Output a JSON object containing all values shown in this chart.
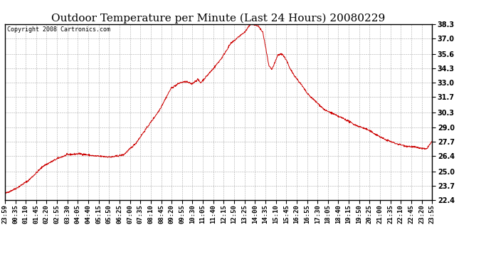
{
  "title": "Outdoor Temperature per Minute (Last 24 Hours) 20080229",
  "copyright_text": "Copyright 2008 Cartronics.com",
  "line_color": "#cc0000",
  "background_color": "#ffffff",
  "grid_color": "#aaaaaa",
  "border_color": "#000000",
  "ylim": [
    22.4,
    38.3
  ],
  "yticks": [
    22.4,
    23.7,
    25.0,
    26.4,
    27.7,
    29.0,
    30.3,
    31.7,
    33.0,
    34.3,
    35.6,
    37.0,
    38.3
  ],
  "x_labels": [
    "23:59",
    "00:35",
    "01:10",
    "01:45",
    "02:20",
    "02:55",
    "03:30",
    "04:05",
    "04:40",
    "05:15",
    "05:50",
    "06:25",
    "07:00",
    "07:35",
    "08:10",
    "08:45",
    "09:20",
    "09:55",
    "10:30",
    "11:05",
    "11:40",
    "12:15",
    "12:50",
    "13:25",
    "14:00",
    "14:35",
    "15:10",
    "15:45",
    "16:20",
    "16:55",
    "17:30",
    "18:05",
    "18:40",
    "19:15",
    "19:50",
    "20:25",
    "21:00",
    "21:35",
    "22:10",
    "22:45",
    "23:20",
    "23:55"
  ],
  "title_fontsize": 11,
  "tick_fontsize": 6.5,
  "ytick_fontsize": 7,
  "copyright_fontsize": 6,
  "key_points_x": [
    0,
    40,
    80,
    130,
    180,
    210,
    250,
    265,
    300,
    360,
    400,
    440,
    480,
    520,
    560,
    590,
    610,
    620,
    630,
    650,
    660,
    700,
    730,
    760,
    790,
    810,
    820,
    830,
    845,
    855,
    870,
    890,
    900,
    910,
    920,
    935,
    950,
    960,
    980,
    1000,
    1020,
    1040,
    1060,
    1080,
    1100,
    1120,
    1140,
    1160,
    1180,
    1200,
    1220,
    1240,
    1260,
    1280,
    1300,
    1320,
    1350,
    1380,
    1420,
    1440
  ],
  "key_points_y": [
    23.0,
    23.5,
    24.2,
    25.5,
    26.2,
    26.5,
    26.6,
    26.55,
    26.4,
    26.3,
    26.5,
    27.5,
    29.0,
    30.5,
    32.5,
    33.0,
    33.1,
    33.0,
    32.9,
    33.3,
    33.0,
    34.2,
    35.2,
    36.5,
    37.2,
    37.6,
    38.0,
    38.3,
    38.2,
    38.1,
    37.5,
    34.5,
    34.2,
    34.8,
    35.5,
    35.6,
    35.0,
    34.3,
    33.5,
    32.8,
    32.0,
    31.5,
    31.0,
    30.5,
    30.3,
    30.0,
    29.8,
    29.5,
    29.2,
    29.0,
    28.8,
    28.5,
    28.2,
    27.9,
    27.7,
    27.5,
    27.3,
    27.2,
    27.0,
    27.7
  ]
}
